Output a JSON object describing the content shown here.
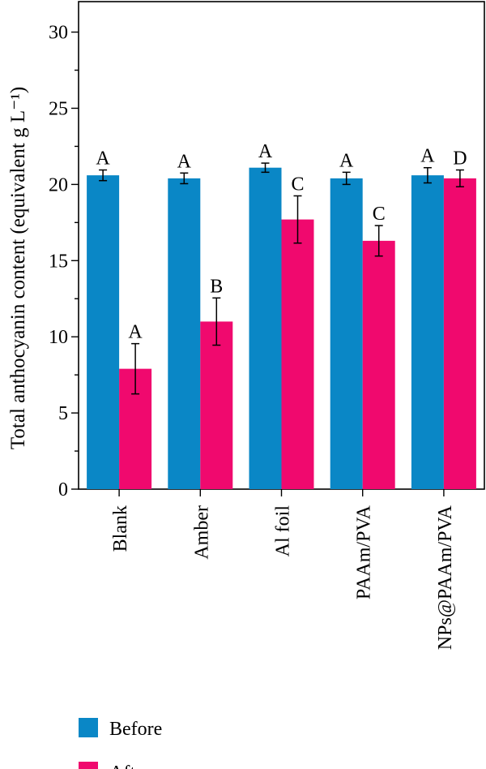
{
  "chart_data": {
    "type": "bar",
    "categories": [
      "Blank",
      "Amber",
      "Al foil",
      "PAAm/PVA",
      "NPs@PAAm/PVA"
    ],
    "series": [
      {
        "name": "Before",
        "color": "#0a87c6",
        "values": [
          20.6,
          20.4,
          21.1,
          20.4,
          20.6
        ],
        "errors": [
          0.35,
          0.35,
          0.3,
          0.4,
          0.5
        ],
        "letters": [
          "A",
          "A",
          "A",
          "A",
          "A"
        ]
      },
      {
        "name": "After",
        "color": "#f0096e",
        "values": [
          7.9,
          11.0,
          17.7,
          16.3,
          20.4
        ],
        "errors": [
          1.65,
          1.55,
          1.55,
          1.0,
          0.55
        ],
        "letters": [
          "A",
          "B",
          "C",
          "C",
          "D"
        ]
      }
    ],
    "ylabel": "Total anthocyanin content (equivalent g L⁻¹)",
    "xlabel": "",
    "ylim": [
      0,
      32
    ],
    "yticks": [
      0,
      5,
      10,
      15,
      20,
      25,
      30
    ],
    "grid": false,
    "legend_position": "bottom-left"
  }
}
